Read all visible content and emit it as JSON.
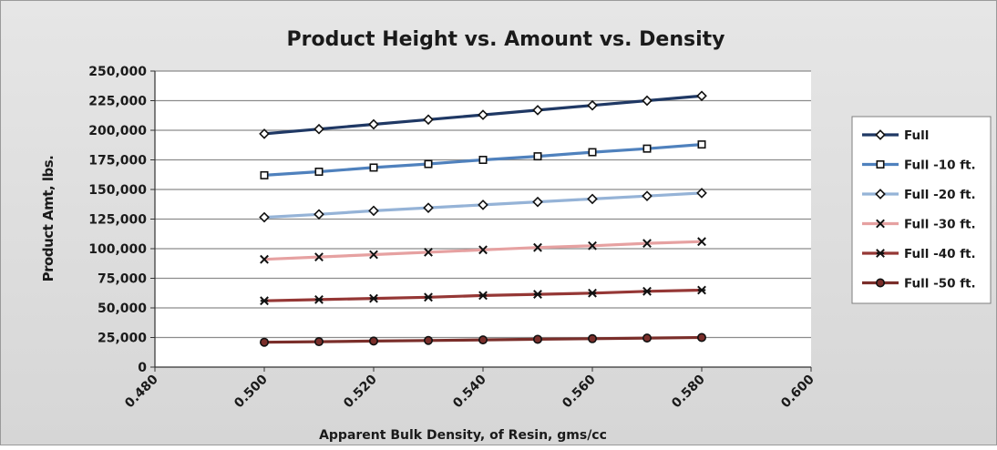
{
  "chart_data": {
    "type": "line",
    "title": "Product Height vs. Amount vs. Density",
    "xlabel": "Apparent Bulk Density, of Resin, gms/cc",
    "ylabel": "Product Amt, lbs.",
    "xlim": [
      0.48,
      0.6
    ],
    "ylim": [
      0,
      250000
    ],
    "x_ticks": [
      "0.480",
      "0.500",
      "0.520",
      "0.540",
      "0.560",
      "0.580",
      "0.600"
    ],
    "y_ticks": [
      "0",
      "25,000",
      "50,000",
      "75,000",
      "100,000",
      "125,000",
      "150,000",
      "175,000",
      "200,000",
      "225,000",
      "250,000"
    ],
    "grid": true,
    "legend_position": "right",
    "x": [
      0.5,
      0.51,
      0.52,
      0.53,
      0.54,
      0.55,
      0.56,
      0.57,
      0.58
    ],
    "series": [
      {
        "name": "Full",
        "color": "#1f3864",
        "marker": "diamond",
        "values": [
          197000,
          201000,
          205000,
          209000,
          213000,
          217000,
          221000,
          225000,
          229000
        ]
      },
      {
        "name": "Full -10 ft.",
        "color": "#4f81bd",
        "marker": "square",
        "values": [
          162000,
          165000,
          168500,
          171500,
          175000,
          178000,
          181500,
          184500,
          188000
        ]
      },
      {
        "name": "Full -20 ft.",
        "color": "#95b3d7",
        "marker": "diamond",
        "values": [
          126500,
          129000,
          132000,
          134500,
          137000,
          139500,
          142000,
          144500,
          147000
        ]
      },
      {
        "name": "Full -30 ft.",
        "color": "#e6a1a1",
        "marker": "x",
        "values": [
          91000,
          93000,
          95000,
          97000,
          99000,
          101000,
          102500,
          104500,
          106000
        ]
      },
      {
        "name": "Full -40 ft.",
        "color": "#953735",
        "marker": "star",
        "values": [
          56000,
          57000,
          58000,
          59000,
          60500,
          61500,
          62500,
          64000,
          65000
        ]
      },
      {
        "name": "Full -50 ft.",
        "color": "#7a2e2a",
        "marker": "circle",
        "values": [
          21000,
          21500,
          22000,
          22500,
          23000,
          23500,
          24000,
          24500,
          25000
        ]
      }
    ]
  }
}
